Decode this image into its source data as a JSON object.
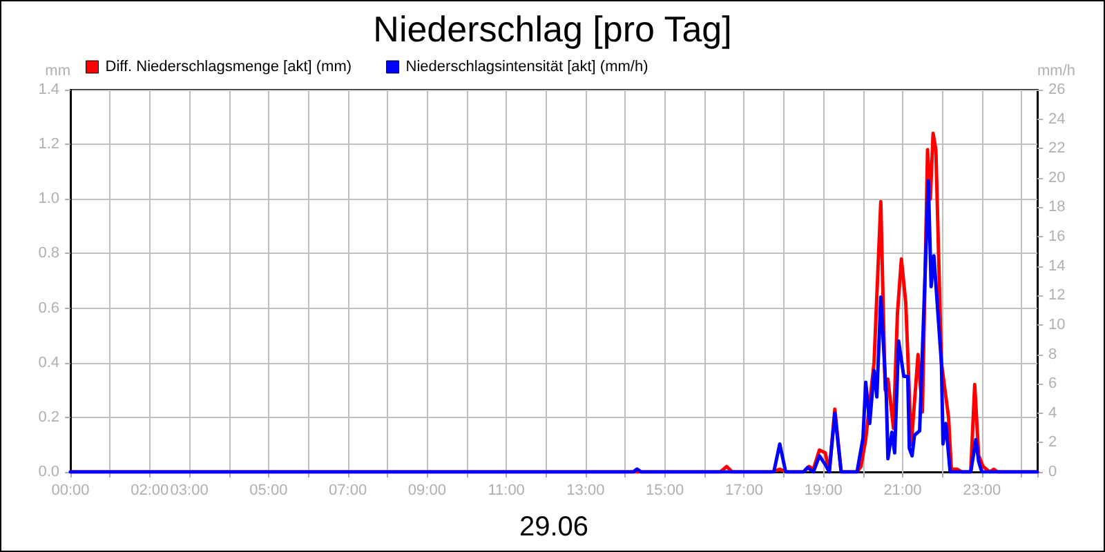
{
  "chart_data": {
    "type": "line",
    "title": "Niederschlag [pro Tag]",
    "xlabel": "29.06",
    "ylabel": "mm",
    "y2label": "mm/h",
    "xlim": [
      0,
      24.4
    ],
    "xticks": [
      {
        "value": 0,
        "label": "00:00"
      },
      {
        "value": 1,
        "label": null
      },
      {
        "value": 2,
        "label": "02:00"
      },
      {
        "value": 3,
        "label": "03:00"
      },
      {
        "value": 4,
        "label": null
      },
      {
        "value": 5,
        "label": "05:00"
      },
      {
        "value": 6,
        "label": null
      },
      {
        "value": 7,
        "label": "07:00"
      },
      {
        "value": 8,
        "label": null
      },
      {
        "value": 9,
        "label": "09:00"
      },
      {
        "value": 10,
        "label": null
      },
      {
        "value": 11,
        "label": "11:00"
      },
      {
        "value": 12,
        "label": null
      },
      {
        "value": 13,
        "label": "13:00"
      },
      {
        "value": 14,
        "label": null
      },
      {
        "value": 15,
        "label": "15:00"
      },
      {
        "value": 16,
        "label": null
      },
      {
        "value": 17,
        "label": "17:00"
      },
      {
        "value": 18,
        "label": null
      },
      {
        "value": 19,
        "label": "19:00"
      },
      {
        "value": 20,
        "label": null
      },
      {
        "value": 21,
        "label": "21:00"
      },
      {
        "value": 22,
        "label": null
      },
      {
        "value": 23,
        "label": "23:00"
      },
      {
        "value": 24,
        "label": null
      }
    ],
    "ylim": [
      0,
      1.4
    ],
    "yticks": [
      {
        "value": 0,
        "label": "0.0"
      },
      0.2,
      0.4,
      0.6,
      0.8,
      {
        "value": 1,
        "label": "1.0"
      },
      1.2,
      1.4
    ],
    "y2lim": [
      0,
      26
    ],
    "y2ticks": [
      0,
      2,
      4,
      6,
      8,
      10,
      12,
      14,
      16,
      18,
      20,
      22,
      24,
      26
    ],
    "grid": true,
    "legend": "top left",
    "marker": "none",
    "line_style": "solid",
    "series": [
      {
        "name": "Diff. Niederschlagsmenge [akt] (mm)",
        "color": "#ff0000",
        "x": [
          0,
          16.4,
          16.56,
          16.7,
          17.7,
          17.9,
          18.1,
          18.5,
          18.64,
          18.75,
          18.9,
          19.05,
          19.15,
          19.29,
          19.45,
          19.85,
          19.95,
          20.07,
          20.28,
          20.45,
          20.56,
          20.63,
          20.77,
          20.87,
          20.97,
          21.08,
          21.22,
          21.39,
          21.5,
          21.63,
          21.7,
          21.77,
          21.84,
          21.98,
          22.16,
          22.23,
          22.37,
          22.5,
          22.72,
          22.82,
          22.92,
          23.03,
          23.2,
          23.3,
          23.4,
          24.4
        ],
        "values": [
          0,
          0,
          0.02,
          0,
          0,
          0.01,
          0,
          0,
          0.02,
          0.01,
          0.08,
          0.07,
          0,
          0.23,
          0,
          0,
          0.02,
          0.12,
          0.4,
          0.99,
          0.3,
          0.34,
          0.16,
          0.58,
          0.78,
          0.62,
          0.1,
          0.43,
          0.22,
          1.18,
          1.0,
          1.24,
          1.18,
          0.4,
          0.2,
          0.01,
          0.01,
          0,
          0,
          0.32,
          0.06,
          0.02,
          0,
          0.01,
          0,
          0
        ]
      },
      {
        "name": "Niederschlagsintensität [akt] (mm/h)",
        "color": "#0000ff",
        "axis": "y2",
        "x": [
          0,
          14.2,
          14.3,
          14.4,
          17.75,
          17.9,
          18.05,
          18.5,
          18.6,
          18.75,
          18.9,
          19.05,
          19.15,
          19.29,
          19.45,
          19.85,
          20.0,
          20.07,
          20.17,
          20.28,
          20.35,
          20.45,
          20.59,
          20.63,
          20.73,
          20.8,
          20.9,
          21.03,
          21.13,
          21.17,
          21.24,
          21.3,
          21.43,
          21.65,
          21.72,
          21.79,
          21.98,
          22.02,
          22.09,
          22.2,
          22.72,
          22.85,
          22.92,
          23.0,
          24.4
        ],
        "values": [
          0,
          0,
          0.2,
          0,
          0,
          1.9,
          0,
          0,
          0.3,
          0,
          1.1,
          0.5,
          0,
          4.0,
          0,
          0,
          2.3,
          6.1,
          3.3,
          6.9,
          5.1,
          11.9,
          5.1,
          0.9,
          2.7,
          1.3,
          8.9,
          6.5,
          6.5,
          1.6,
          1.1,
          2.5,
          2.8,
          19.8,
          12.6,
          14.7,
          7.4,
          1.9,
          3.3,
          0,
          0,
          2.2,
          0.7,
          0,
          0
        ]
      }
    ]
  }
}
